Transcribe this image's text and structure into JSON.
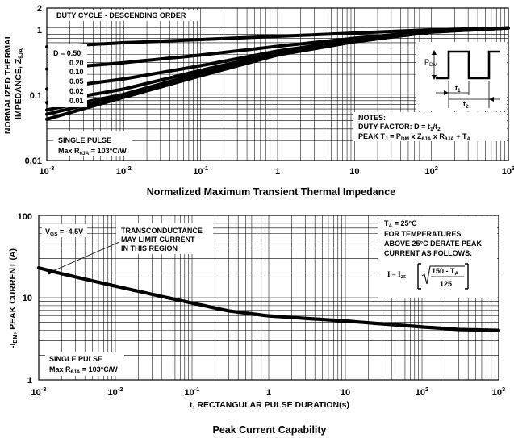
{
  "chart_data": [
    {
      "type": "line",
      "title": "Normalized Maximum Transient Thermal Impedance",
      "xlabel": "",
      "ylabel": "NORMALIZED THERMAL IMPEDANCE, Z_θJA",
      "ylabel_lines": [
        "NORMALIZED THERMAL",
        "IMPEDANCE, Z"
      ],
      "ylabel_sub": "θJA",
      "xscale": "log",
      "yscale": "log",
      "xlim": [
        0.001,
        1000
      ],
      "ylim": [
        0.01,
        2
      ],
      "x_tick_labels": [
        {
          "base": "10",
          "exp": "-3"
        },
        {
          "base": "10",
          "exp": "-2"
        },
        {
          "base": "10",
          "exp": "-1"
        },
        {
          "base": "1",
          "exp": ""
        },
        {
          "base": "10",
          "exp": ""
        },
        {
          "base": "10",
          "exp": "2"
        },
        {
          "base": "10",
          "exp": "3"
        }
      ],
      "y_tick_labels": [
        "2",
        "1",
        "0.1",
        "0.01"
      ],
      "legend_title": "DUTY CYCLE - DESCENDING ORDER",
      "series": [
        {
          "name": "D = 0.50",
          "x": [
            0.001,
            0.01,
            0.1,
            1,
            10,
            100,
            1000
          ],
          "y": [
            0.52,
            0.6,
            0.67,
            0.75,
            0.84,
            0.94,
            1.0
          ]
        },
        {
          "name": "0.20",
          "x": [
            0.001,
            0.01,
            0.1,
            1,
            10,
            100,
            1000
          ],
          "y": [
            0.24,
            0.3,
            0.39,
            0.53,
            0.7,
            0.9,
            1.0
          ]
        },
        {
          "name": "0.10",
          "x": [
            0.001,
            0.01,
            0.1,
            1,
            10,
            100,
            1000
          ],
          "y": [
            0.12,
            0.17,
            0.27,
            0.45,
            0.66,
            0.89,
            1.0
          ]
        },
        {
          "name": "0.05",
          "x": [
            0.001,
            0.01,
            0.1,
            1,
            10,
            100,
            1000
          ],
          "y": [
            0.075,
            0.12,
            0.23,
            0.42,
            0.64,
            0.88,
            1.0
          ]
        },
        {
          "name": "0.02",
          "x": [
            0.001,
            0.01,
            0.1,
            1,
            10,
            100,
            1000
          ],
          "y": [
            0.058,
            0.1,
            0.21,
            0.4,
            0.63,
            0.88,
            1.0
          ]
        },
        {
          "name": "0.01",
          "x": [
            0.001,
            0.01,
            0.1,
            1,
            10,
            100,
            1000
          ],
          "y": [
            0.05,
            0.095,
            0.2,
            0.4,
            0.62,
            0.87,
            1.0
          ]
        },
        {
          "name": "SINGLE PULSE",
          "x": [
            0.001,
            0.01,
            0.1,
            1,
            10,
            100,
            1000
          ],
          "y": [
            0.042,
            0.09,
            0.19,
            0.39,
            0.62,
            0.87,
            1.0
          ]
        }
      ],
      "annotations": {
        "single_pulse": "SINGLE PULSE",
        "max_r_prefix": "Max R",
        "max_r_sub": "θJA",
        "max_r_suffix": " = 103°C/W",
        "pulse_pdm": "P",
        "pulse_pdm_sub": "DM",
        "pulse_t1": "t",
        "pulse_t1_sub": "1",
        "pulse_t2": "t",
        "pulse_t2_sub": "2",
        "notes_title": "NOTES:",
        "duty_prefix": "DUTY FACTOR: D = t",
        "duty_sub1": "1",
        "duty_mid": "/t",
        "duty_sub2": "2",
        "peak_prefix": "PEAK T",
        "peak_sub_j": "J",
        "peak_eq": " = P",
        "peak_sub_dm": "DM",
        "peak_x": " x Z",
        "peak_sub_z": "θJA",
        "peak_x2": " x R",
        "peak_sub_r": "θJA",
        "peak_plus": " + T",
        "peak_sub_a": "A"
      }
    },
    {
      "type": "line",
      "title": "Peak Current Capability",
      "xlabel": "t, RECTANGULAR PULSE DURATION(s)",
      "ylabel": "-I_DM, PEAK CURRENT (A)",
      "ylabel_prefix": "-I",
      "ylabel_sub": "DM",
      "ylabel_suffix": ", PEAK CURRENT (A)",
      "xscale": "log",
      "yscale": "log",
      "xlim": [
        0.001,
        1000
      ],
      "ylim": [
        1,
        100
      ],
      "x_tick_labels": [
        {
          "base": "10",
          "exp": "-3"
        },
        {
          "base": "10",
          "exp": "-2"
        },
        {
          "base": "10",
          "exp": "-1"
        },
        {
          "base": "1",
          "exp": ""
        },
        {
          "base": "10",
          "exp": ""
        },
        {
          "base": "10",
          "exp": "2"
        },
        {
          "base": "10",
          "exp": "3"
        }
      ],
      "y_tick_labels": [
        "100",
        "10",
        "1"
      ],
      "series": [
        {
          "name": "V_GS = -4.5V",
          "x": [
            0.001,
            0.002,
            0.005,
            0.01,
            0.03,
            0.1,
            0.3,
            1,
            3,
            10,
            30,
            100,
            300,
            1000
          ],
          "y": [
            23,
            19.5,
            16,
            13.8,
            11,
            8.6,
            6.9,
            6.0,
            5.6,
            5.2,
            4.8,
            4.4,
            4.1,
            4.0
          ]
        }
      ],
      "annotations": {
        "vgs_prefix": "V",
        "vgs_sub": "GS",
        "vgs_suffix": " = -4.5V",
        "transconductance": [
          "TRANSCONDUCTANCE",
          "MAY  LIMIT CURRENT",
          "IN THIS REGION"
        ],
        "ta_prefix": "T",
        "ta_sub": "A",
        "ta_suffix": " = 25°C",
        "derate": [
          "FOR TEMPERATURES",
          "ABOVE 25°C DERATE PEAK",
          "CURRENT AS FOLLOWS:"
        ],
        "formula_lhs": "I = I",
        "formula_lhs_sub": "25",
        "formula_num": "150 - T",
        "formula_num_sub": "A",
        "formula_den": "125",
        "single_pulse": "SINGLE PULSE",
        "max_r_prefix": "Max R",
        "max_r_sub": "θJA",
        "max_r_suffix": " = 103°C/W"
      }
    }
  ]
}
